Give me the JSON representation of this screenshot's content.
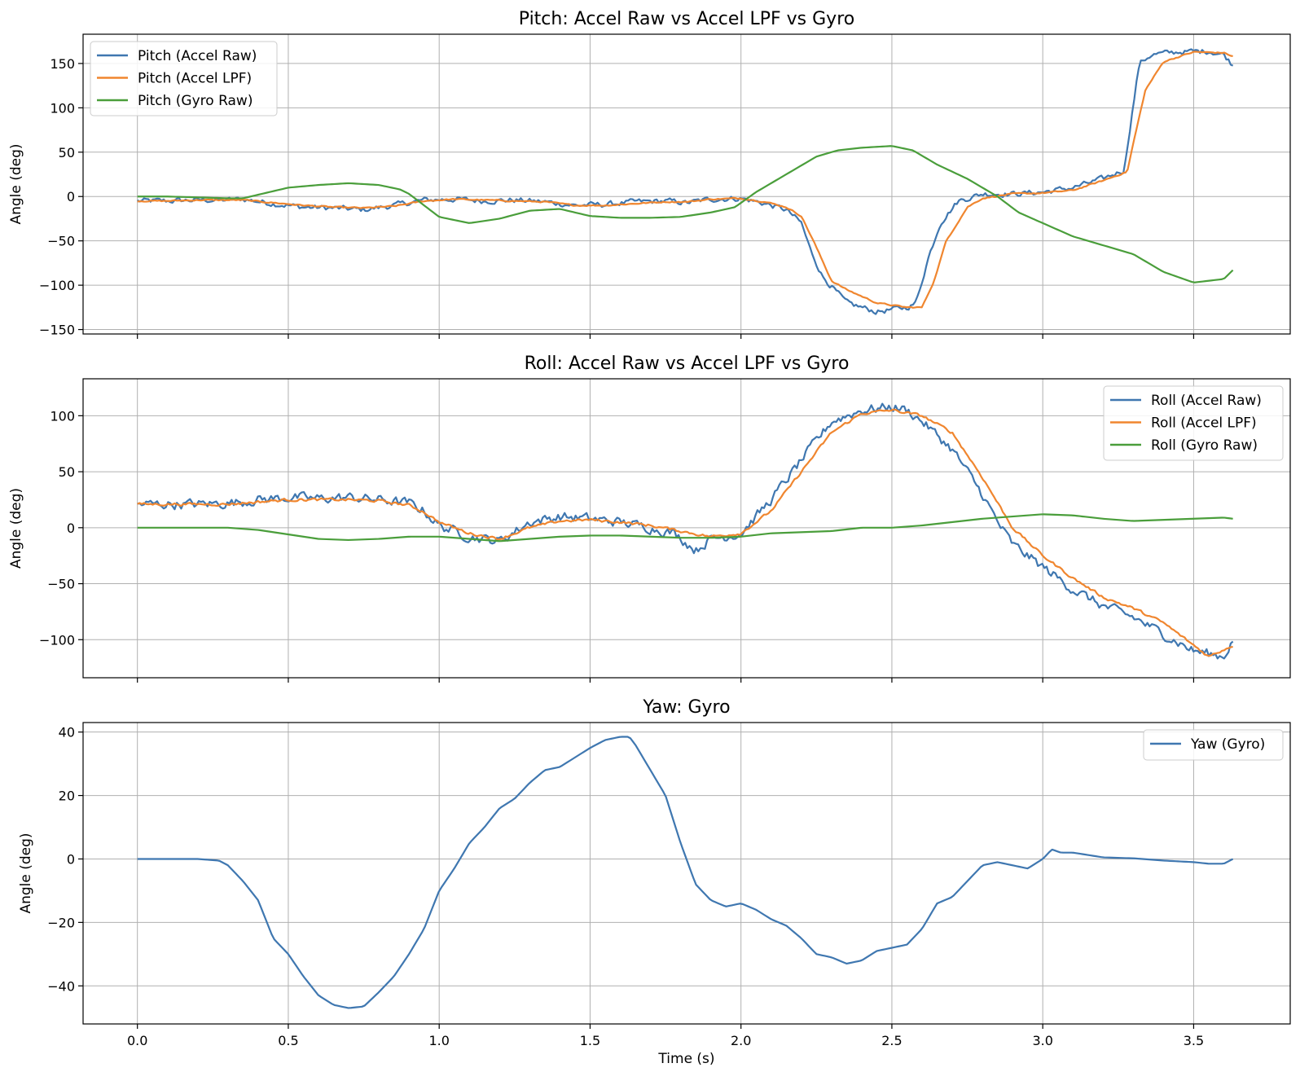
{
  "chart_data": [
    {
      "type": "line",
      "title": "Pitch: Accel Raw vs Accel LPF vs Gyro",
      "xlabel": "",
      "ylabel": "Angle (deg)",
      "xlim": [
        -0.18,
        3.82
      ],
      "ylim": [
        -155,
        183
      ],
      "xticks": [
        0.0,
        0.5,
        1.0,
        1.5,
        2.0,
        2.5,
        3.0,
        3.5
      ],
      "yticks": [
        -150,
        -100,
        -50,
        0,
        50,
        100,
        150
      ],
      "ytick_labels": [
        "−150",
        "−100",
        "−50",
        "0",
        "50",
        "100",
        "150"
      ],
      "show_xtick_labels": false,
      "grid": true,
      "legend_position": "upper-left",
      "series": [
        {
          "name": "Pitch (Accel Raw)",
          "color": "#3f77b0",
          "noise": 5,
          "x": [
            0,
            0.1,
            0.2,
            0.3,
            0.35,
            0.45,
            0.55,
            0.65,
            0.75,
            0.85,
            0.95,
            1.05,
            1.15,
            1.25,
            1.35,
            1.45,
            1.55,
            1.65,
            1.75,
            1.82,
            1.9,
            2.0,
            2.08,
            2.15,
            2.2,
            2.23,
            2.27,
            2.35,
            2.45,
            2.55,
            2.58,
            2.62,
            2.66,
            2.72,
            2.8,
            2.9,
            3.0,
            3.1,
            3.2,
            3.27,
            3.29,
            3.32,
            3.36,
            3.45,
            3.55,
            3.6,
            3.63
          ],
          "y": [
            -5,
            -5,
            -4,
            -4,
            -3,
            -8,
            -12,
            -13,
            -15,
            -10,
            -4,
            -3,
            -5,
            -4,
            -6,
            -10,
            -9,
            -6,
            -5,
            -7,
            -3,
            -2,
            -8,
            -15,
            -30,
            -60,
            -90,
            -120,
            -130,
            -125,
            -120,
            -70,
            -30,
            -5,
            3,
            3,
            5,
            10,
            20,
            30,
            80,
            150,
            160,
            163,
            164,
            160,
            148
          ]
        },
        {
          "name": "Pitch (Accel LPF)",
          "color": "#f0862f",
          "noise": 1.2,
          "x": [
            0,
            0.1,
            0.2,
            0.3,
            0.35,
            0.45,
            0.55,
            0.65,
            0.75,
            0.85,
            0.95,
            1.05,
            1.15,
            1.25,
            1.35,
            1.45,
            1.55,
            1.65,
            1.75,
            1.82,
            1.9,
            2.0,
            2.08,
            2.15,
            2.2,
            2.24,
            2.3,
            2.35,
            2.45,
            2.55,
            2.6,
            2.64,
            2.68,
            2.75,
            2.8,
            2.9,
            3.0,
            3.1,
            3.2,
            3.28,
            3.3,
            3.34,
            3.4,
            3.5,
            3.6,
            3.63
          ],
          "y": [
            -5,
            -5,
            -4,
            -4,
            -4,
            -7,
            -10,
            -12,
            -13,
            -11,
            -5,
            -3,
            -4,
            -5,
            -6,
            -10,
            -10,
            -8,
            -6,
            -6,
            -3,
            -2,
            -6,
            -12,
            -22,
            -50,
            -95,
            -105,
            -120,
            -125,
            -125,
            -95,
            -50,
            -12,
            -2,
            3,
            4,
            7,
            18,
            28,
            60,
            120,
            152,
            163,
            162,
            158
          ]
        },
        {
          "name": "Pitch (Gyro Raw)",
          "color": "#4a9e3b",
          "noise": 0,
          "x": [
            0,
            0.1,
            0.2,
            0.3,
            0.35,
            0.4,
            0.5,
            0.6,
            0.7,
            0.8,
            0.87,
            0.9,
            0.95,
            1.0,
            1.1,
            1.2,
            1.3,
            1.4,
            1.5,
            1.6,
            1.7,
            1.8,
            1.9,
            1.98,
            2.05,
            2.15,
            2.25,
            2.32,
            2.4,
            2.5,
            2.57,
            2.65,
            2.75,
            2.85,
            2.92,
            3.0,
            3.1,
            3.2,
            3.3,
            3.4,
            3.5,
            3.6,
            3.63
          ],
          "y": [
            0,
            0,
            -1,
            -2,
            -2,
            2,
            10,
            13,
            15,
            13,
            8,
            3,
            -10,
            -23,
            -30,
            -25,
            -16,
            -14,
            -22,
            -24,
            -24,
            -23,
            -18,
            -12,
            5,
            25,
            45,
            52,
            55,
            57,
            52,
            36,
            20,
            0,
            -18,
            -30,
            -45,
            -55,
            -65,
            -85,
            -97,
            -93,
            -83
          ]
        }
      ]
    },
    {
      "type": "line",
      "title": "Roll: Accel Raw vs Accel LPF vs Gyro",
      "xlabel": "",
      "ylabel": "Angle (deg)",
      "xlim": [
        -0.18,
        3.82
      ],
      "ylim": [
        -134,
        133
      ],
      "xticks": [
        0.0,
        0.5,
        1.0,
        1.5,
        2.0,
        2.5,
        3.0,
        3.5
      ],
      "yticks": [
        -100,
        -50,
        0,
        50,
        100
      ],
      "ytick_labels": [
        "−100",
        "−50",
        "0",
        "50",
        "100"
      ],
      "show_xtick_labels": false,
      "grid": true,
      "legend_position": "upper-right",
      "series": [
        {
          "name": "Roll (Accel Raw)",
          "color": "#3f77b0",
          "noise": 7,
          "x": [
            0,
            0.1,
            0.2,
            0.3,
            0.4,
            0.5,
            0.6,
            0.7,
            0.8,
            0.9,
            0.95,
            1.0,
            1.1,
            1.2,
            1.3,
            1.4,
            1.5,
            1.6,
            1.7,
            1.78,
            1.85,
            1.9,
            2.0,
            2.1,
            2.2,
            2.3,
            2.4,
            2.5,
            2.55,
            2.6,
            2.7,
            2.8,
            2.85,
            2.9,
            3.0,
            3.1,
            3.2,
            3.3,
            3.4,
            3.5,
            3.6,
            3.63
          ],
          "y": [
            21,
            21,
            21,
            22,
            25,
            27,
            26,
            27,
            25,
            22,
            15,
            2,
            -8,
            -12,
            5,
            10,
            8,
            5,
            0,
            -5,
            -20,
            -10,
            -5,
            25,
            60,
            95,
            105,
            108,
            105,
            95,
            70,
            30,
            5,
            -15,
            -35,
            -55,
            -70,
            -80,
            -95,
            -110,
            -115,
            -100
          ]
        },
        {
          "name": "Roll (Accel LPF)",
          "color": "#f0862f",
          "noise": 2,
          "x": [
            0,
            0.1,
            0.2,
            0.3,
            0.4,
            0.5,
            0.6,
            0.7,
            0.8,
            0.9,
            0.95,
            1.0,
            1.1,
            1.2,
            1.3,
            1.4,
            1.5,
            1.6,
            1.7,
            1.8,
            1.9,
            2.0,
            2.1,
            2.2,
            2.3,
            2.4,
            2.5,
            2.6,
            2.7,
            2.8,
            2.9,
            3.0,
            3.1,
            3.2,
            3.3,
            3.4,
            3.5,
            3.55,
            3.63
          ],
          "y": [
            21,
            21,
            21,
            21,
            23,
            25,
            25,
            25,
            24,
            20,
            14,
            5,
            -5,
            -10,
            0,
            6,
            7,
            5,
            2,
            -3,
            -8,
            -5,
            15,
            50,
            85,
            102,
            105,
            100,
            85,
            45,
            0,
            -25,
            -45,
            -62,
            -72,
            -85,
            -105,
            -115,
            -105
          ]
        },
        {
          "name": "Roll (Gyro Raw)",
          "color": "#4a9e3b",
          "noise": 0,
          "x": [
            0,
            0.1,
            0.2,
            0.3,
            0.4,
            0.5,
            0.6,
            0.7,
            0.8,
            0.9,
            1.0,
            1.1,
            1.2,
            1.3,
            1.4,
            1.5,
            1.6,
            1.7,
            1.8,
            1.9,
            2.0,
            2.1,
            2.2,
            2.3,
            2.4,
            2.5,
            2.6,
            2.7,
            2.8,
            2.9,
            3.0,
            3.1,
            3.2,
            3.3,
            3.4,
            3.5,
            3.6,
            3.63
          ],
          "y": [
            0,
            0,
            0,
            0,
            -2,
            -6,
            -10,
            -11,
            -10,
            -8,
            -8,
            -10,
            -12,
            -10,
            -8,
            -7,
            -7,
            -8,
            -9,
            -9,
            -8,
            -5,
            -4,
            -3,
            0,
            0,
            2,
            5,
            8,
            10,
            12,
            11,
            8,
            6,
            7,
            8,
            9,
            8
          ]
        }
      ]
    },
    {
      "type": "line",
      "title": "Yaw: Gyro",
      "xlabel": "Time (s)",
      "ylabel": "Angle (deg)",
      "xlim": [
        -0.18,
        3.82
      ],
      "ylim": [
        -52,
        43
      ],
      "xticks": [
        0.0,
        0.5,
        1.0,
        1.5,
        2.0,
        2.5,
        3.0,
        3.5
      ],
      "xtick_labels": [
        "0.0",
        "0.5",
        "1.0",
        "1.5",
        "2.0",
        "2.5",
        "3.0",
        "3.5"
      ],
      "yticks": [
        -40,
        -20,
        0,
        20,
        40
      ],
      "ytick_labels": [
        "−40",
        "−20",
        "0",
        "20",
        "40"
      ],
      "show_xtick_labels": true,
      "grid": true,
      "legend_position": "upper-right",
      "series": [
        {
          "name": "Yaw (Gyro)",
          "color": "#3f77b0",
          "noise": 0,
          "x": [
            0,
            0.1,
            0.2,
            0.27,
            0.3,
            0.35,
            0.4,
            0.45,
            0.5,
            0.55,
            0.6,
            0.65,
            0.7,
            0.75,
            0.8,
            0.85,
            0.9,
            0.95,
            1.0,
            1.05,
            1.1,
            1.15,
            1.2,
            1.25,
            1.3,
            1.35,
            1.4,
            1.45,
            1.5,
            1.55,
            1.6,
            1.63,
            1.65,
            1.7,
            1.75,
            1.8,
            1.85,
            1.9,
            1.95,
            2.0,
            2.05,
            2.1,
            2.15,
            2.2,
            2.25,
            2.3,
            2.35,
            2.4,
            2.45,
            2.5,
            2.55,
            2.6,
            2.65,
            2.7,
            2.75,
            2.8,
            2.85,
            2.9,
            2.95,
            3.0,
            3.03,
            3.06,
            3.1,
            3.2,
            3.3,
            3.4,
            3.5,
            3.55,
            3.6,
            3.63
          ],
          "y": [
            0,
            0,
            0,
            -0.5,
            -2,
            -7,
            -13,
            -25,
            -30,
            -37,
            -43,
            -46,
            -47,
            -46.5,
            -42,
            -37,
            -30,
            -22,
            -10,
            -3,
            5,
            10,
            16,
            19,
            24,
            28,
            29,
            32,
            35,
            37.5,
            38.5,
            38.5,
            36,
            28,
            20,
            5,
            -8,
            -13,
            -15,
            -14,
            -16,
            -19,
            -21,
            -25,
            -30,
            -31,
            -33,
            -32,
            -29,
            -28,
            -27,
            -22,
            -14,
            -12,
            -7,
            -2,
            -1,
            -2,
            -3,
            0,
            3,
            2,
            2,
            0.5,
            0.2,
            -0.5,
            -1,
            -1.5,
            -1.5,
            0
          ]
        }
      ]
    }
  ]
}
